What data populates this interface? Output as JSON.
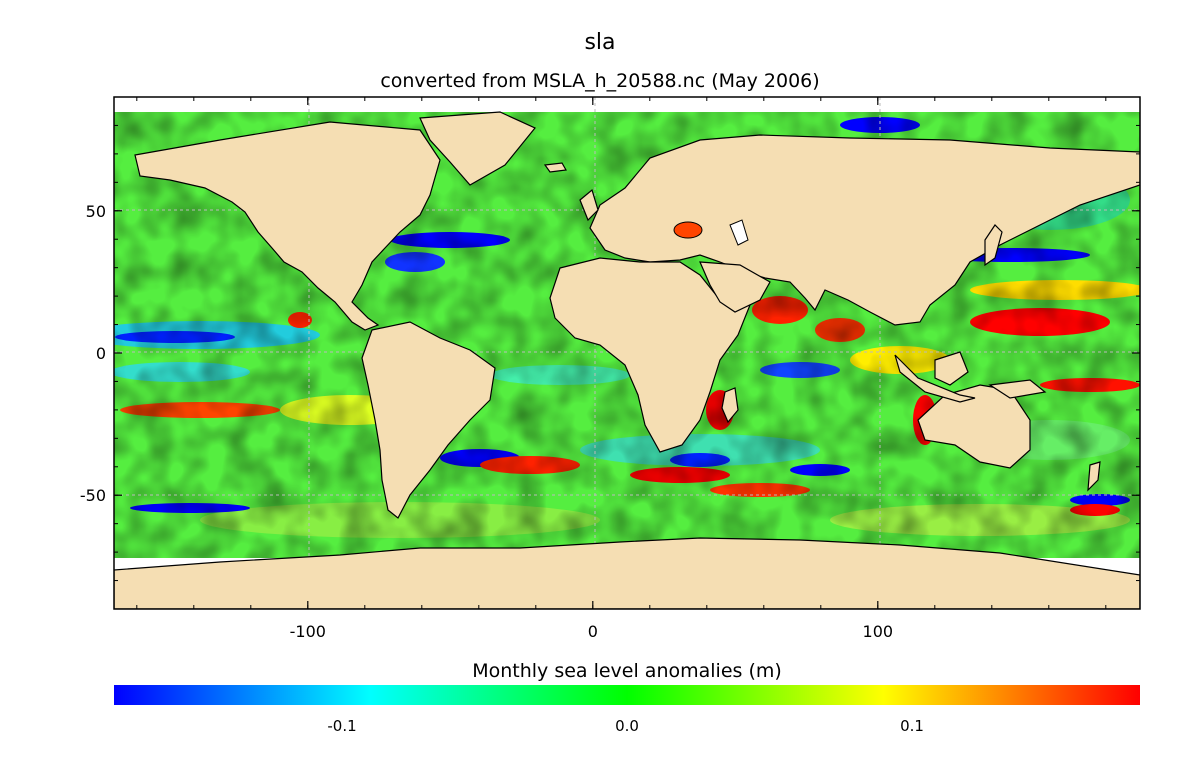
{
  "figure": {
    "title": "sla",
    "subtitle": "converted from MSLA_h_20588.nc (May 2006)"
  },
  "map": {
    "projection": "equirectangular",
    "lon_range": [
      -168,
      192
    ],
    "lat_range": [
      -90,
      90
    ],
    "x_ticks": [
      -100,
      0,
      100
    ],
    "y_ticks": [
      50,
      0,
      -50
    ],
    "gridlines": true,
    "land_color": "#f5deb3",
    "missing_color": "#ffffff"
  },
  "colorbar": {
    "label": "Monthly sea level anomalies (m)",
    "range": [
      -0.18,
      0.18
    ],
    "ticks": [
      {
        "value": -0.1,
        "label": "-0.1"
      },
      {
        "value": 0.0,
        "label": "0.0"
      },
      {
        "value": 0.1,
        "label": "0.1"
      }
    ],
    "colors": [
      "#0000ff",
      "#00ffff",
      "#00ff00",
      "#ffff00",
      "#ff0000"
    ]
  }
}
